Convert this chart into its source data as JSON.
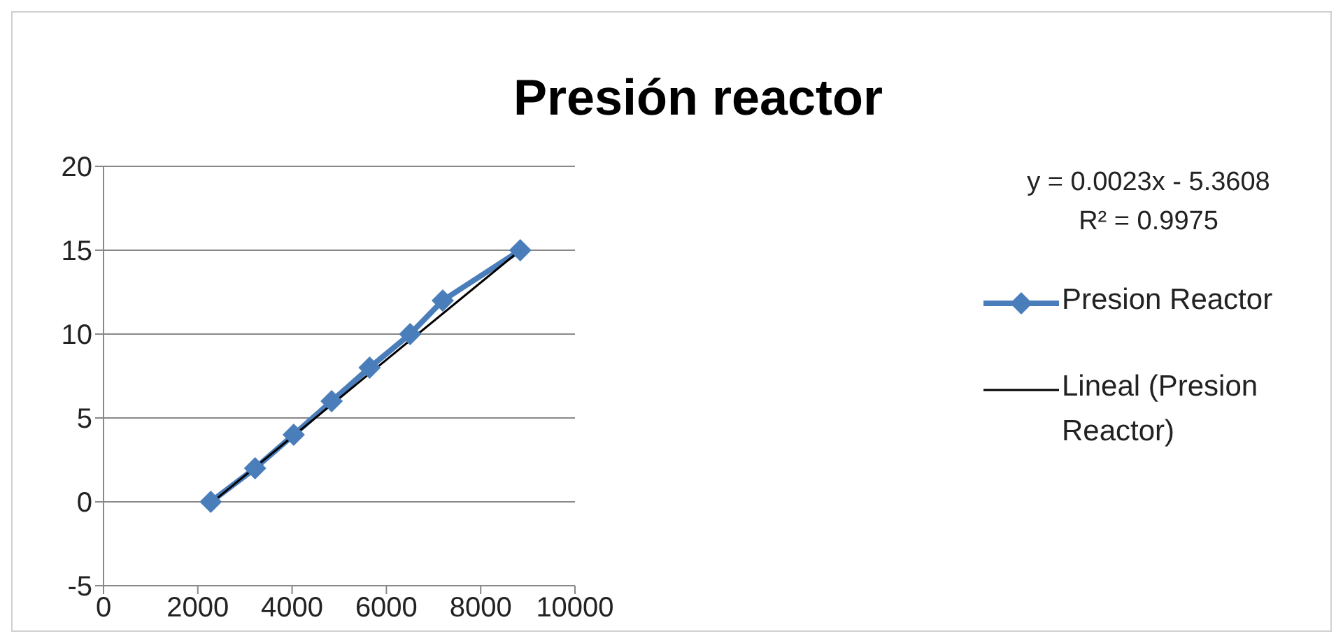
{
  "chart_data": {
    "type": "line",
    "title": "Presión reactor",
    "annotations": [
      "y = 0.0023x - 5.3608",
      "R² = 0.9975"
    ],
    "series": [
      {
        "name": "Presion Reactor",
        "color": "#4a7ebb",
        "marker": "diamond",
        "x": [
          2275,
          3215,
          4034,
          4839,
          5644,
          6503,
          7195,
          8839
        ],
        "values": [
          0,
          2,
          4,
          6,
          8,
          10,
          12,
          15
        ]
      },
      {
        "name": "Lineal (Presion Reactor)",
        "color": "#000000",
        "marker": "none",
        "x": [
          2275,
          8839
        ],
        "values": [
          -0.1,
          15
        ]
      }
    ],
    "xlim": [
      0,
      10000
    ],
    "xticks": [
      0,
      2000,
      4000,
      6000,
      8000,
      10000
    ],
    "ylim": [
      -5,
      20
    ],
    "yticks": [
      -5,
      0,
      5,
      10,
      15,
      20
    ],
    "grid": "y",
    "legend": "right"
  }
}
